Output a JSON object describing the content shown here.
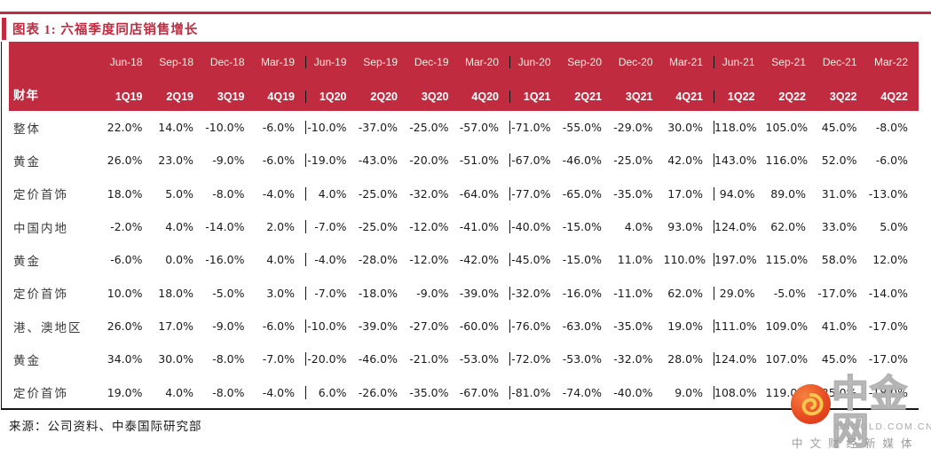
{
  "page": {
    "title": "图表 1: 六福季度同店销售增长",
    "source": "来源：公司资料、中泰国际研究部"
  },
  "watermark": {
    "name": "中金网",
    "domain": "CNGOLD.COM.CN",
    "tagline": "中文财经新媒体",
    "logo_icon": "swirl-icon",
    "logo_colors": {
      "circle": "#E84B22",
      "swirl": "#F8C84E"
    }
  },
  "chart_data": {
    "type": "table",
    "title": "六福季度同店销售增长",
    "corner_label": "财年",
    "colors": {
      "header_bg": "#C02B40",
      "accent_red": "#C02B40",
      "text": "#1A1A1A",
      "separator": "#151515"
    },
    "columns": [
      {
        "date": "Jun-18",
        "quarter": "1Q19"
      },
      {
        "date": "Sep-18",
        "quarter": "2Q19"
      },
      {
        "date": "Dec-18",
        "quarter": "3Q19"
      },
      {
        "date": "Mar-19",
        "quarter": "4Q19"
      },
      {
        "date": "Jun-19",
        "quarter": "1Q20"
      },
      {
        "date": "Sep-19",
        "quarter": "2Q20"
      },
      {
        "date": "Dec-19",
        "quarter": "3Q20"
      },
      {
        "date": "Mar-20",
        "quarter": "4Q20"
      },
      {
        "date": "Jun-20",
        "quarter": "1Q21"
      },
      {
        "date": "Sep-20",
        "quarter": "2Q21"
      },
      {
        "date": "Dec-20",
        "quarter": "3Q21"
      },
      {
        "date": "Mar-21",
        "quarter": "4Q21"
      },
      {
        "date": "Jun-21",
        "quarter": "1Q22"
      },
      {
        "date": "Sep-21",
        "quarter": "2Q22"
      },
      {
        "date": "Dec-21",
        "quarter": "3Q22"
      },
      {
        "date": "Mar-22",
        "quarter": "4Q22"
      }
    ],
    "group_separators_after": [
      3,
      7,
      11
    ],
    "rows": [
      {
        "label": "整体",
        "bold": true,
        "values": [
          "22.0%",
          "14.0%",
          "-10.0%",
          "-6.0%",
          "-10.0%",
          "-37.0%",
          "-25.0%",
          "-57.0%",
          "-71.0%",
          "-55.0%",
          "-29.0%",
          "30.0%",
          "118.0%",
          "105.0%",
          "45.0%",
          "-8.0%"
        ]
      },
      {
        "label": "黄金",
        "bold": false,
        "values": [
          "26.0%",
          "23.0%",
          "-9.0%",
          "-6.0%",
          "-19.0%",
          "-43.0%",
          "-20.0%",
          "-51.0%",
          "-67.0%",
          "-46.0%",
          "-25.0%",
          "42.0%",
          "143.0%",
          "116.0%",
          "52.0%",
          "-6.0%"
        ]
      },
      {
        "label": "定价首饰",
        "bold": false,
        "values": [
          "18.0%",
          "5.0%",
          "-8.0%",
          "-4.0%",
          "4.0%",
          "-25.0%",
          "-32.0%",
          "-64.0%",
          "-77.0%",
          "-65.0%",
          "-35.0%",
          "17.0%",
          "94.0%",
          "89.0%",
          "31.0%",
          "-13.0%"
        ]
      },
      {
        "label": "中国内地",
        "bold": true,
        "values": [
          "-2.0%",
          "4.0%",
          "-14.0%",
          "2.0%",
          "-7.0%",
          "-25.0%",
          "-12.0%",
          "-41.0%",
          "-40.0%",
          "-15.0%",
          "4.0%",
          "93.0%",
          "124.0%",
          "62.0%",
          "33.0%",
          "5.0%"
        ]
      },
      {
        "label": "黄金",
        "bold": false,
        "values": [
          "-6.0%",
          "0.0%",
          "-16.0%",
          "4.0%",
          "-4.0%",
          "-28.0%",
          "-12.0%",
          "-42.0%",
          "-45.0%",
          "-15.0%",
          "11.0%",
          "110.0%",
          "197.0%",
          "115.0%",
          "58.0%",
          "12.0%"
        ]
      },
      {
        "label": "定价首饰",
        "bold": false,
        "values": [
          "10.0%",
          "18.0%",
          "-5.0%",
          "3.0%",
          "-7.0%",
          "-18.0%",
          "-9.0%",
          "-39.0%",
          "-32.0%",
          "-16.0%",
          "-11.0%",
          "62.0%",
          "29.0%",
          "-5.0%",
          "-17.0%",
          "-14.0%"
        ]
      },
      {
        "label": "港、澳地区",
        "bold": true,
        "values": [
          "26.0%",
          "17.0%",
          "-9.0%",
          "-6.0%",
          "-10.0%",
          "-39.0%",
          "-27.0%",
          "-60.0%",
          "-76.0%",
          "-63.0%",
          "-35.0%",
          "19.0%",
          "111.0%",
          "109.0%",
          "41.0%",
          "-17.0%"
        ]
      },
      {
        "label": "黄金",
        "bold": false,
        "values": [
          "34.0%",
          "30.0%",
          "-8.0%",
          "-7.0%",
          "-20.0%",
          "-46.0%",
          "-21.0%",
          "-53.0%",
          "-72.0%",
          "-53.0%",
          "-32.0%",
          "28.0%",
          "124.0%",
          "107.0%",
          "45.0%",
          "-17.0%"
        ]
      },
      {
        "label": "定价首饰",
        "bold": false,
        "values": [
          "19.0%",
          "4.0%",
          "-8.0%",
          "-4.0%",
          "6.0%",
          "-26.0%",
          "-35.0%",
          "-67.0%",
          "-81.0%",
          "-74.0%",
          "-40.0%",
          "9.0%",
          "108.0%",
          "119.0%",
          "35.0%",
          "-18.0%"
        ]
      }
    ]
  }
}
